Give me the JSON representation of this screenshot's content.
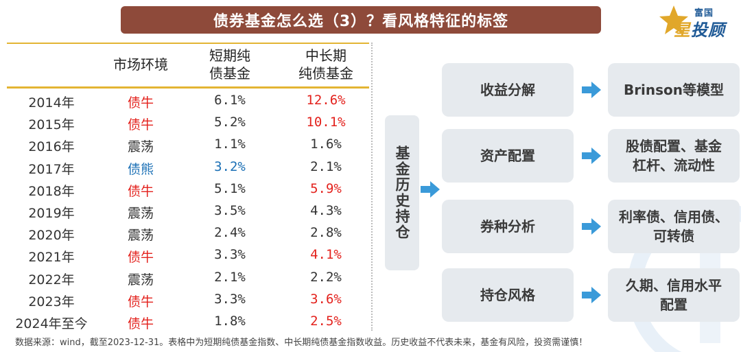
{
  "title": "债券基金怎么选（3）？看风格特征的标签",
  "logo": {
    "top_text": "富国",
    "brand_char1": "星",
    "brand_rest": "投顾",
    "icon": "star-icon"
  },
  "table": {
    "headers": {
      "env": "市场环境",
      "short_line1": "短期纯",
      "short_line2": "债基金",
      "long_line1": "中长期",
      "long_line2": "纯债基金"
    },
    "rows": [
      {
        "year": "2014年",
        "env": "债牛",
        "short": "6.1%",
        "long": "12.6%",
        "env_color": "red",
        "short_color": "dark",
        "long_color": "red"
      },
      {
        "year": "2015年",
        "env": "债牛",
        "short": "5.2%",
        "long": "10.1%",
        "env_color": "red",
        "short_color": "dark",
        "long_color": "red"
      },
      {
        "year": "2016年",
        "env": "震荡",
        "short": "1.1%",
        "long": "1.6%",
        "env_color": "dark",
        "short_color": "dark",
        "long_color": "dark"
      },
      {
        "year": "2017年",
        "env": "债熊",
        "short": "3.2%",
        "long": "2.1%",
        "env_color": "blue",
        "short_color": "blue",
        "long_color": "dark"
      },
      {
        "year": "2018年",
        "env": "债牛",
        "short": "5.1%",
        "long": "5.9%",
        "env_color": "red",
        "short_color": "dark",
        "long_color": "red"
      },
      {
        "year": "2019年",
        "env": "震荡",
        "short": "3.5%",
        "long": "4.3%",
        "env_color": "dark",
        "short_color": "dark",
        "long_color": "dark"
      },
      {
        "year": "2020年",
        "env": "震荡",
        "short": "2.4%",
        "long": "2.8%",
        "env_color": "dark",
        "short_color": "dark",
        "long_color": "dark"
      },
      {
        "year": "2021年",
        "env": "债牛",
        "short": "3.3%",
        "long": "4.1%",
        "env_color": "red",
        "short_color": "dark",
        "long_color": "red"
      },
      {
        "year": "2022年",
        "env": "震荡",
        "short": "2.1%",
        "long": "2.2%",
        "env_color": "dark",
        "short_color": "dark",
        "long_color": "dark"
      },
      {
        "year": "2023年",
        "env": "债牛",
        "short": "3.3%",
        "long": "3.6%",
        "env_color": "red",
        "short_color": "dark",
        "long_color": "red"
      },
      {
        "year": "2024年至今",
        "env": "债牛",
        "short": "1.8%",
        "long": "2.5%",
        "env_color": "red",
        "short_color": "dark",
        "long_color": "red"
      }
    ]
  },
  "diagram": {
    "root": "基金历史持仓",
    "items": [
      {
        "label": "收益分解",
        "result_line1": "Brinson等模型",
        "result_line2": ""
      },
      {
        "label": "资产配置",
        "result_line1": "股债配置、基金",
        "result_line2": "杠杆、流动性"
      },
      {
        "label": "券种分析",
        "result_line1": "利率债、信用债、",
        "result_line2": "可转债"
      },
      {
        "label": "持仓风格",
        "result_line1": "久期、信用水平",
        "result_line2": "配置"
      }
    ],
    "arrow_color": "#3a9ad9"
  },
  "footnote": "数据来源：wind，截至2023-12-31。表格中为短期纯债基金指数、中长期纯债基金指数收益。历史收益不代表未来，基金有风险，投资需谨慎！",
  "colors": {
    "title_bg": "#8e4a3a",
    "rule": "#e3b432",
    "red": "#e3211c",
    "blue": "#1a6fb5",
    "box_bg": "#e6eaee"
  }
}
